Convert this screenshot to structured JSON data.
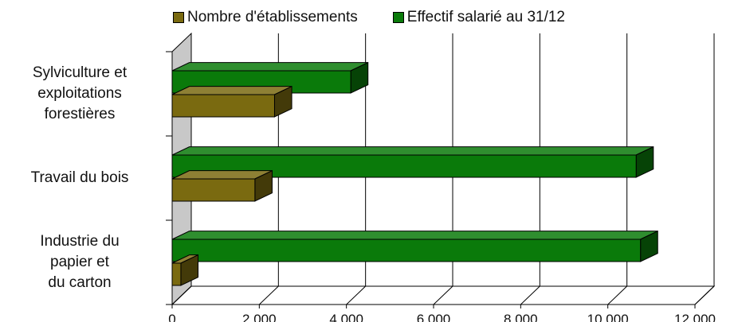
{
  "chart_data": {
    "type": "bar",
    "orientation": "horizontal",
    "style": "3d",
    "categories": [
      "Sylviculture et exploitations forestières",
      "Travail du bois",
      "Industrie du papier et du carton"
    ],
    "category_lines": [
      [
        "Sylviculture et",
        "exploitations",
        "forestières"
      ],
      [
        "Travail du bois"
      ],
      [
        "Industrie du",
        "papier et",
        "du carton"
      ]
    ],
    "series": [
      {
        "name": "Nombre d'établissements",
        "values": [
          2350,
          1900,
          200
        ],
        "color": "#7a6a10"
      },
      {
        "name": "Effectif salarié au 31/12",
        "values": [
          4100,
          10650,
          10750
        ],
        "color": "#0a7a0a"
      }
    ],
    "xlim": [
      0,
      12000
    ],
    "xticks": [
      "0",
      "2 000",
      "4 000",
      "6 000",
      "8 000",
      "10 000",
      "12 000"
    ],
    "grid": true,
    "legend_position": "top"
  }
}
